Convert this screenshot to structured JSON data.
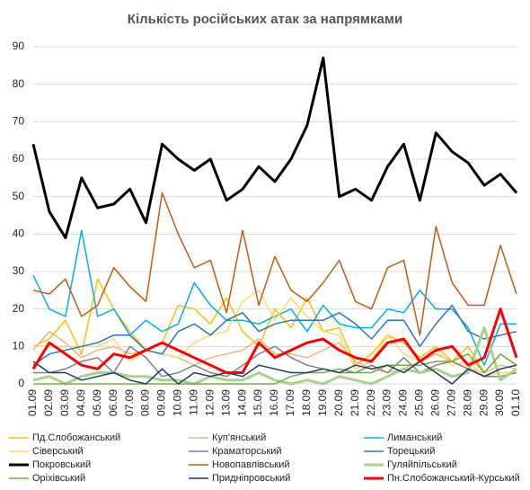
{
  "chart_data": {
    "type": "line",
    "title": "Кількість російських атак за напрямками",
    "categories": [
      "01.09",
      "02.09",
      "03.09",
      "04.09",
      "05.09",
      "06.09",
      "07.09",
      "08.09",
      "09.09",
      "10.09",
      "11.09",
      "12.09",
      "13.09",
      "14.09",
      "15.09",
      "16.09",
      "17.09",
      "18.09",
      "19.09",
      "20.09",
      "21.09",
      "22.09",
      "23.09",
      "24.09",
      "25.09",
      "26.09",
      "27.09",
      "28.09",
      "29.09",
      "30.09",
      "01.10"
    ],
    "ylim": [
      0,
      90
    ],
    "yticks": [
      0,
      10,
      20,
      30,
      40,
      50,
      60,
      70,
      80,
      90
    ],
    "grid": true,
    "series": [
      {
        "name": "Пд.Слобожанський",
        "color": "#ffc000",
        "width": 1.5,
        "values": [
          10,
          12,
          17,
          8,
          28,
          20,
          14,
          9,
          11,
          21,
          20,
          16,
          23,
          14,
          10,
          20,
          15,
          23,
          14,
          15,
          5,
          8,
          13,
          11,
          7,
          10,
          6,
          10,
          3,
          8,
          5
        ]
      },
      {
        "name": "Куп'янський",
        "color": "#f4b183",
        "width": 1.5,
        "values": [
          9,
          14,
          11,
          7,
          9,
          10,
          8,
          9,
          8,
          7,
          5,
          7,
          8,
          9,
          12,
          8,
          8,
          7,
          9,
          11,
          6,
          4,
          3,
          4,
          6,
          8,
          6,
          4,
          3,
          5,
          4
        ]
      },
      {
        "name": "Лиманський",
        "color": "#00b0f0",
        "width": 1.5,
        "values": [
          29,
          20,
          18,
          41,
          18,
          20,
          13,
          17,
          14,
          16,
          27,
          21,
          17,
          17,
          16,
          18,
          20,
          14,
          21,
          16,
          15,
          15,
          20,
          19,
          25,
          20,
          20,
          15,
          5,
          16,
          16
        ]
      },
      {
        "name": "Сіверський",
        "color": "#ffd966",
        "width": 1.5,
        "values": [
          10,
          10,
          10,
          10,
          10,
          12,
          6,
          9,
          8,
          7,
          11,
          13,
          14,
          22,
          25,
          17,
          23,
          18,
          14,
          13,
          4,
          6,
          13,
          8,
          6,
          9,
          5,
          6,
          2,
          3,
          3
        ]
      },
      {
        "name": "Краматорський",
        "color": "#808080",
        "width": 1.5,
        "values": [
          3,
          3,
          4,
          6,
          7,
          3,
          10,
          7,
          2,
          3,
          5,
          3,
          2,
          5,
          8,
          10,
          7,
          5,
          4,
          3,
          3,
          5,
          3,
          7,
          3,
          5,
          6,
          4,
          2,
          2,
          3
        ]
      },
      {
        "name": "Торецький",
        "color": "#2e75b6",
        "width": 1.5,
        "values": [
          5,
          8,
          9,
          10,
          11,
          13,
          13,
          9,
          8,
          14,
          16,
          13,
          17,
          19,
          14,
          16,
          17,
          17,
          17,
          19,
          16,
          12,
          17,
          17,
          10,
          16,
          21,
          14,
          12,
          13,
          14
        ]
      },
      {
        "name": "Покровський",
        "color": "#000000",
        "width": 3,
        "values": [
          64,
          46,
          39,
          55,
          47,
          48,
          52,
          43,
          64,
          60,
          57,
          60,
          49,
          52,
          58,
          54,
          60,
          69,
          87,
          50,
          52,
          49,
          58,
          64,
          49,
          67,
          62,
          59,
          53,
          56,
          51
        ]
      },
      {
        "name": "Новопавлівський",
        "color": "#c55a11",
        "width": 1.5,
        "values": [
          25,
          24,
          28,
          18,
          21,
          31,
          26,
          22,
          51,
          40,
          31,
          33,
          19,
          41,
          21,
          34,
          25,
          22,
          27,
          33,
          22,
          20,
          31,
          33,
          13,
          42,
          27,
          21,
          21,
          37,
          24
        ]
      },
      {
        "name": "Гуляйпільський",
        "color": "#a9d18e",
        "width": 3,
        "values": [
          1,
          2,
          0,
          2,
          3,
          3,
          2,
          2,
          1,
          1,
          0,
          2,
          1,
          1,
          3,
          1,
          0,
          1,
          0,
          2,
          1,
          0,
          2,
          4,
          3,
          4,
          2,
          3,
          15,
          1,
          4
        ]
      },
      {
        "name": "Оріхівський",
        "color": "#70ad47",
        "width": 1.5,
        "values": [
          0,
          0,
          0,
          0,
          0,
          0,
          0,
          0,
          0,
          0,
          0,
          0,
          0,
          0,
          0,
          0,
          2,
          3,
          3,
          4,
          3,
          3,
          5,
          5,
          5,
          6,
          6,
          8,
          3,
          8,
          5
        ]
      },
      {
        "name": "Придніпровський",
        "color": "#203864",
        "width": 1.5,
        "values": [
          6,
          3,
          3,
          1,
          2,
          3,
          1,
          0,
          4,
          0,
          3,
          2,
          3,
          2,
          5,
          4,
          3,
          3,
          4,
          3,
          5,
          4,
          5,
          3,
          6,
          3,
          0,
          4,
          2,
          4,
          5
        ]
      },
      {
        "name": "Пн.Слобожанський-Курський",
        "color": "#ff0000",
        "width": 3,
        "values": [
          4,
          11,
          8,
          5,
          4,
          8,
          7,
          9,
          11,
          9,
          7,
          5,
          3,
          3,
          11,
          7,
          9,
          11,
          12,
          9,
          7,
          6,
          11,
          12,
          6,
          9,
          10,
          5,
          7,
          20,
          7
        ]
      }
    ]
  }
}
